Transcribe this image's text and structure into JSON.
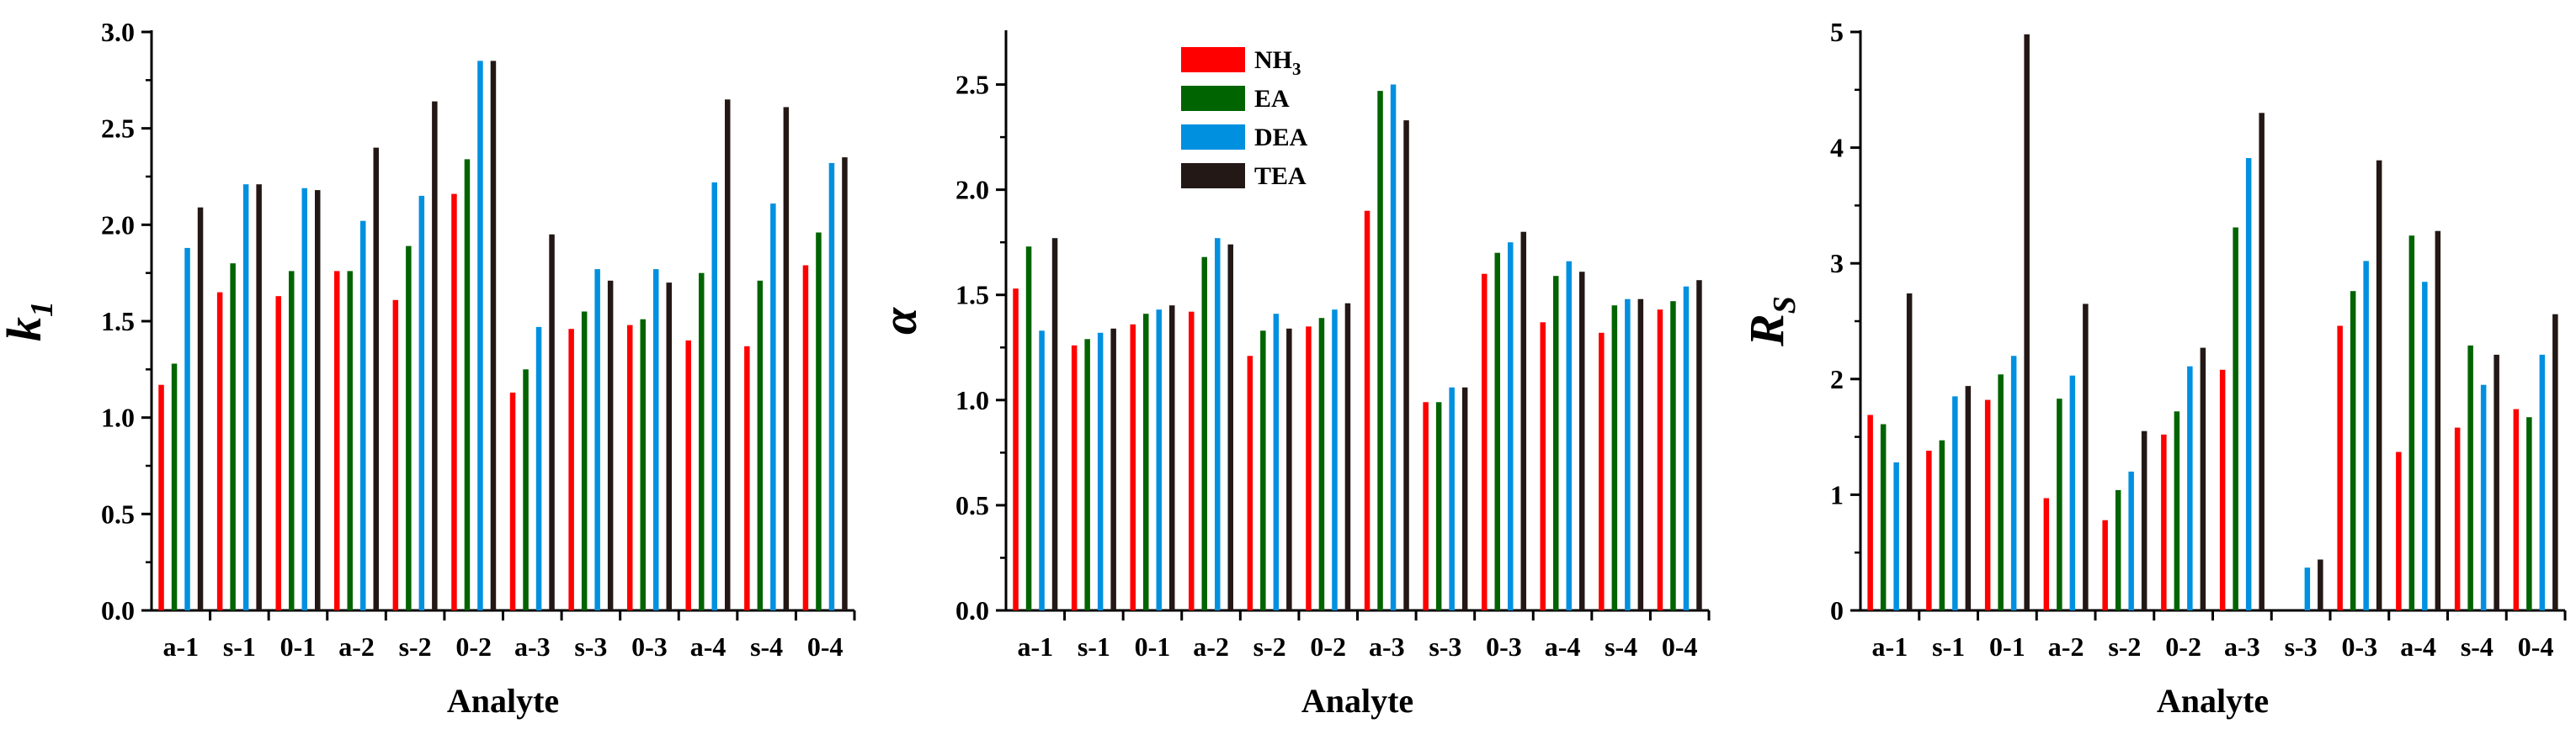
{
  "chart_data": [
    {
      "type": "bar",
      "ylabel": "k",
      "ylabel_subscript": "1",
      "xlabel": "Analyte",
      "ylim": [
        0,
        3.0
      ],
      "yticks": [
        "0.0",
        "0.5",
        "1.0",
        "1.5",
        "2.0",
        "2.5",
        "3.0"
      ],
      "categories": [
        "a-1",
        "s-1",
        "0-1",
        "a-2",
        "s-2",
        "0-2",
        "a-3",
        "s-3",
        "0-3",
        "a-4",
        "s-4",
        "0-4"
      ],
      "series": [
        {
          "name": "NH3",
          "values": [
            1.17,
            1.65,
            1.63,
            1.76,
            1.61,
            2.16,
            1.13,
            1.46,
            1.48,
            1.4,
            1.37,
            1.79
          ]
        },
        {
          "name": "EA",
          "values": [
            1.28,
            1.8,
            1.76,
            1.76,
            1.89,
            2.34,
            1.25,
            1.55,
            1.51,
            1.75,
            1.71,
            1.96
          ]
        },
        {
          "name": "DEA",
          "values": [
            1.88,
            2.21,
            2.19,
            2.02,
            2.15,
            2.85,
            1.47,
            1.77,
            1.77,
            2.22,
            2.11,
            2.32
          ]
        },
        {
          "name": "TEA",
          "values": [
            2.09,
            2.21,
            2.18,
            2.4,
            2.64,
            2.85,
            1.95,
            1.71,
            1.7,
            2.65,
            2.61,
            2.35
          ]
        }
      ]
    },
    {
      "type": "bar",
      "ylabel": "α",
      "ylabel_subscript": "",
      "xlabel": "Analyte",
      "ylim": [
        0,
        2.75
      ],
      "yticks": [
        "0.0",
        "0.5",
        "1.0",
        "1.5",
        "2.0",
        "2.5"
      ],
      "categories": [
        "a-1",
        "s-1",
        "0-1",
        "a-2",
        "s-2",
        "0-2",
        "a-3",
        "s-3",
        "0-3",
        "a-4",
        "s-4",
        "0-4"
      ],
      "series": [
        {
          "name": "NH3",
          "values": [
            1.53,
            1.26,
            1.36,
            1.42,
            1.21,
            1.35,
            1.9,
            0.99,
            1.6,
            1.37,
            1.32,
            1.43
          ]
        },
        {
          "name": "EA",
          "values": [
            1.73,
            1.29,
            1.41,
            1.68,
            1.33,
            1.39,
            2.47,
            0.99,
            1.7,
            1.59,
            1.45,
            1.47
          ]
        },
        {
          "name": "DEA",
          "values": [
            1.33,
            1.32,
            1.43,
            1.77,
            1.41,
            1.43,
            2.5,
            1.06,
            1.75,
            1.66,
            1.48,
            1.54
          ]
        },
        {
          "name": "TEA",
          "values": [
            1.77,
            1.34,
            1.45,
            1.74,
            1.34,
            1.46,
            2.33,
            1.06,
            1.8,
            1.61,
            1.48,
            1.57
          ]
        }
      ],
      "legend": {
        "position": "top-left",
        "entries": [
          {
            "label": "NH",
            "subscript": "3",
            "color": "#ff0000"
          },
          {
            "label": "EA",
            "subscript": "",
            "color": "#006400"
          },
          {
            "label": "DEA",
            "subscript": "",
            "color": "#0090e0"
          },
          {
            "label": "TEA",
            "subscript": "",
            "color": "#231815"
          }
        ]
      }
    },
    {
      "type": "bar",
      "ylabel": "R",
      "ylabel_subscript": "S",
      "xlabel": "Analyte",
      "ylim": [
        0,
        5
      ],
      "yticks": [
        "0",
        "1",
        "2",
        "3",
        "4",
        "5"
      ],
      "categories": [
        "a-1",
        "s-1",
        "0-1",
        "a-2",
        "s-2",
        "0-2",
        "a-3",
        "s-3",
        "0-3",
        "a-4",
        "s-4",
        "0-4"
      ],
      "series": [
        {
          "name": "NH3",
          "values": [
            1.69,
            1.38,
            1.82,
            0.97,
            0.78,
            1.52,
            2.08,
            0,
            2.46,
            1.37,
            1.58,
            1.74
          ]
        },
        {
          "name": "EA",
          "values": [
            1.61,
            1.47,
            2.04,
            1.83,
            1.04,
            1.72,
            3.31,
            0,
            2.76,
            3.24,
            2.29,
            1.67
          ]
        },
        {
          "name": "DEA",
          "values": [
            1.28,
            1.85,
            2.2,
            2.03,
            1.2,
            2.11,
            3.91,
            0.37,
            3.02,
            2.84,
            1.95,
            2.21
          ]
        },
        {
          "name": "TEA",
          "values": [
            2.74,
            1.94,
            4.98,
            2.65,
            1.55,
            2.27,
            4.3,
            0.44,
            3.89,
            3.28,
            2.21,
            2.56
          ]
        }
      ]
    }
  ],
  "colors": {
    "NH3": "#ff0000",
    "EA": "#006400",
    "DEA": "#0090e0",
    "TEA": "#231815"
  }
}
